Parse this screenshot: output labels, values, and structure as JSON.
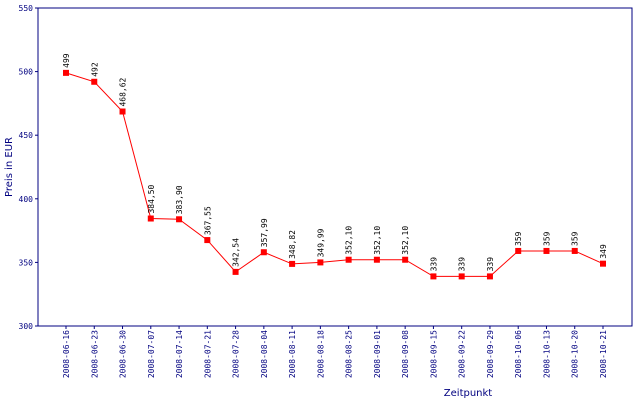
{
  "chart_data": {
    "type": "line",
    "y_label": "Preis in EUR",
    "x_label": "Zeitpunkt",
    "categories": [
      "2008-06-16",
      "2008-06-23",
      "2008-06-30",
      "2008-07-07",
      "2008-07-14",
      "2008-07-21",
      "2008-07-28",
      "2008-08-04",
      "2008-08-11",
      "2008-08-18",
      "2008-08-25",
      "2008-09-01",
      "2008-09-08",
      "2008-09-15",
      "2008-09-22",
      "2008-09-29",
      "2008-10-06",
      "2008-10-13",
      "2008-10-20",
      "2008-10-21"
    ],
    "values": [
      499,
      492,
      468.62,
      384.5,
      383.9,
      367.55,
      342.54,
      357.99,
      348.82,
      349.99,
      352.1,
      352.1,
      352.1,
      339,
      339,
      339,
      359,
      359,
      359,
      349
    ],
    "value_labels": [
      "499",
      "492",
      "468,62",
      "384,50",
      "383,90",
      "367,55",
      "342,54",
      "357,99",
      "348,82",
      "349,99",
      "352,10",
      "352,10",
      "352,10",
      "339",
      "339",
      "339",
      "359",
      "359",
      "359",
      "349"
    ],
    "color": "#ff0000",
    "axis_color": "#000080",
    "ylim": [
      300,
      550
    ],
    "yticks": [
      300,
      350,
      400,
      450,
      500,
      550
    ],
    "grid": false
  }
}
